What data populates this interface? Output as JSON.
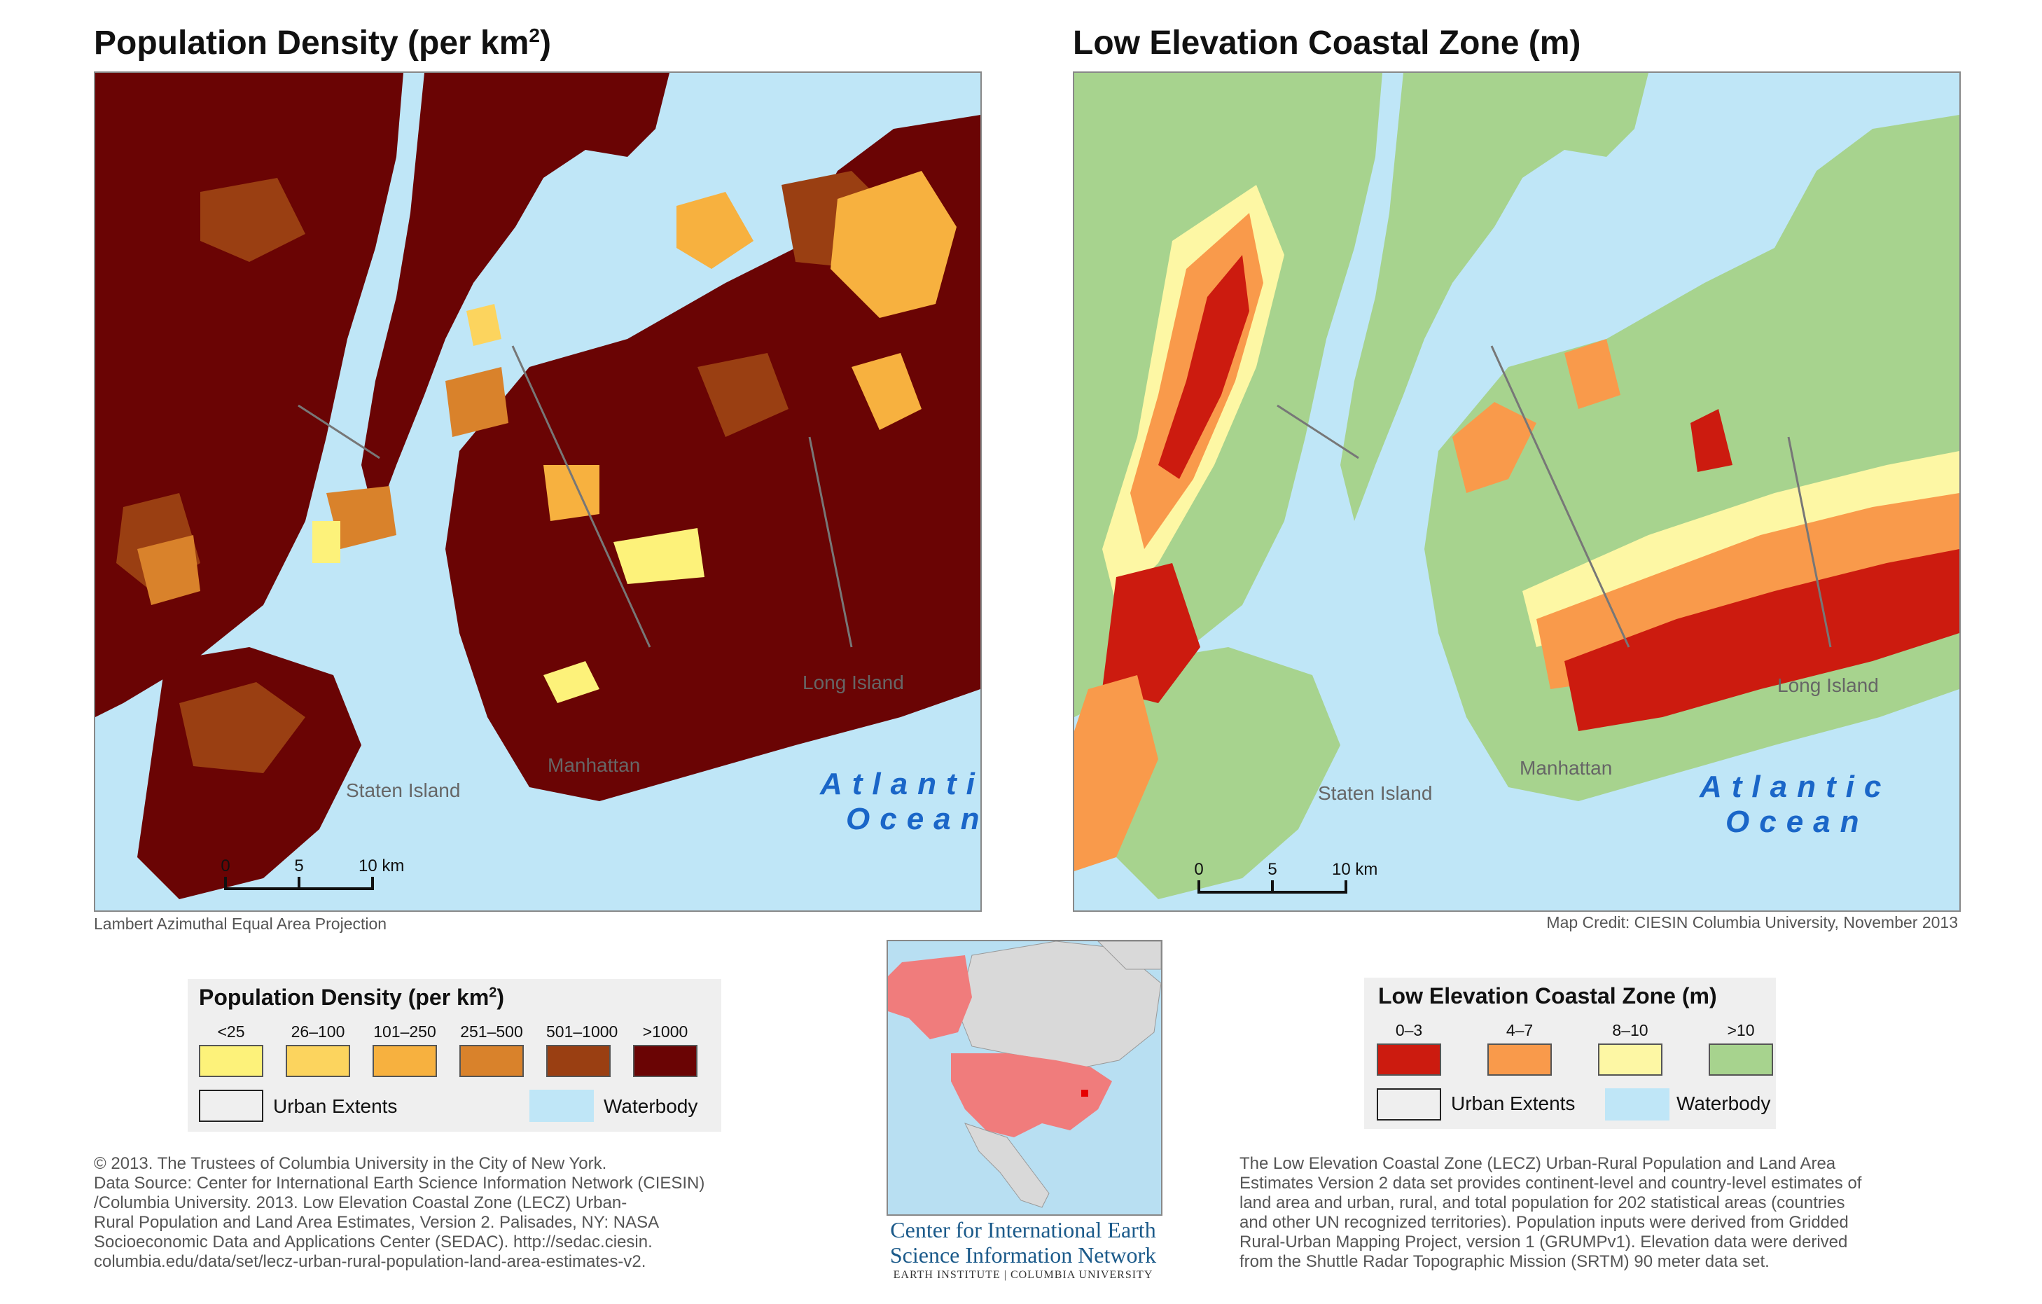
{
  "left_map": {
    "title": "Population Density (per km",
    "title_sup": "2",
    "title_close": ")",
    "labels": {
      "manhattan": "Manhattan",
      "staten": "Staten Island",
      "long": "Long Island"
    },
    "ocean_line1": "Atlantic",
    "ocean_line2": "Ocean",
    "scale": {
      "t0": "0",
      "t5": "5",
      "t10": "10 km"
    },
    "projection_note": "Lambert Azimuthal Equal Area Projection"
  },
  "right_map": {
    "title": "Low Elevation Coastal Zone (m)",
    "labels": {
      "manhattan": "Manhattan",
      "staten": "Staten Island",
      "long": "Long Island"
    },
    "ocean_line1": "Atlantic",
    "ocean_line2": "Ocean",
    "scale": {
      "t0": "0",
      "t5": "5",
      "t10": "10 km"
    },
    "credit": "Map Credit: CIESIN Columbia University, November 2013"
  },
  "legend_density": {
    "title": "Population Density (per km",
    "title_sup": "2",
    "title_close": ")",
    "classes": [
      {
        "label": "<25",
        "color": "#fdf27a"
      },
      {
        "label": "26–100",
        "color": "#fcd45e"
      },
      {
        "label": "101–250",
        "color": "#f7b13f"
      },
      {
        "label": "251–500",
        "color": "#d9822b"
      },
      {
        "label": "501–1000",
        "color": "#9a3f12"
      },
      {
        "label": ">1000",
        "color": "#6a0404"
      }
    ],
    "urban": "Urban Extents",
    "water": "Waterbody",
    "water_color": "#bfe6f7"
  },
  "legend_lecz": {
    "title": "Low Elevation Coastal Zone (m)",
    "classes": [
      {
        "label": "0–3",
        "color": "#cc1b0f"
      },
      {
        "label": "4–7",
        "color": "#f99a4b"
      },
      {
        "label": "8–10",
        "color": "#fdf7a4"
      },
      {
        "label": ">10",
        "color": "#a7d38e"
      }
    ],
    "urban": "Urban Extents",
    "water": "Waterbody"
  },
  "source_text": [
    "© 2013. The Trustees of Columbia University in the City of New York.",
    "Data Source: Center for International Earth Science Information Network (CIESIN)",
    "/Columbia University. 2013. Low Elevation Coastal Zone (LECZ) Urban-",
    "Rural Population and Land Area Estimates, Version 2. Palisades, NY: NASA",
    "Socioeconomic Data and Applications Center (SEDAC). http://sedac.ciesin.",
    "columbia.edu/data/set/lecz-urban-rural-population-land-area-estimates-v2."
  ],
  "description_text": [
    "The Low Elevation Coastal Zone (LECZ) Urban-Rural Population and Land Area",
    "Estimates Version 2 data set provides continent-level and country-level estimates of",
    "land area and urban, rural, and total population for 202 statistical areas (countries",
    "and other UN recognized territories). Population inputs were derived from Gridded",
    "Rural-Urban Mapping Project, version 1 (GRUMPv1). Elevation data were derived",
    "from the Shuttle Radar Topographic Mission (SRTM) 90 meter data set."
  ],
  "org": {
    "line1": "Center for International Earth",
    "line2": "Science Information Network",
    "line3": "EARTH INSTITUTE | COLUMBIA UNIVERSITY"
  }
}
